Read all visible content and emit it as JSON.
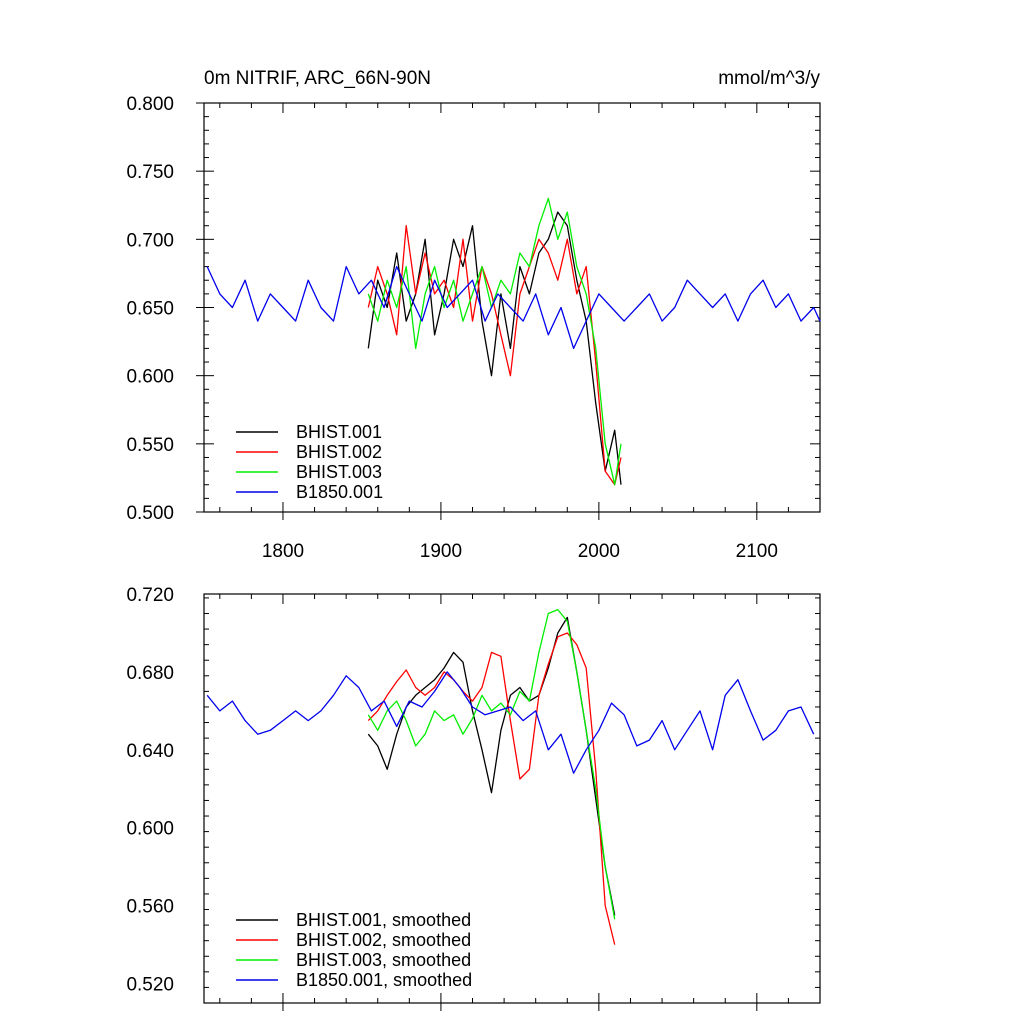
{
  "chart_data": [
    {
      "type": "line",
      "title": "0m NITRIF, ARC_66N-90N",
      "units": "mmol/m^3/y",
      "xlim": [
        1750,
        2140
      ],
      "ylim": [
        0.5,
        0.8
      ],
      "x_ticks": [
        1800,
        1900,
        2000,
        2100
      ],
      "x_tick_labels": [
        "1800",
        "1900",
        "2000",
        "2100"
      ],
      "y_ticks": [
        0.5,
        0.55,
        0.6,
        0.65,
        0.7,
        0.75,
        0.8
      ],
      "y_tick_labels": [
        "0.500",
        "0.550",
        "0.600",
        "0.650",
        "0.700",
        "0.750",
        "0.800"
      ],
      "legend_position": "bottom-left",
      "series": [
        {
          "name": "BHIST.001",
          "color": "#000000",
          "x": [
            1854,
            1860,
            1866,
            1872,
            1878,
            1884,
            1890,
            1896,
            1902,
            1908,
            1914,
            1920,
            1926,
            1932,
            1938,
            1944,
            1950,
            1956,
            1962,
            1968,
            1974,
            1980,
            1986,
            1992,
            1998,
            2004,
            2010,
            2014
          ],
          "y": [
            0.62,
            0.67,
            0.65,
            0.69,
            0.64,
            0.66,
            0.7,
            0.63,
            0.66,
            0.7,
            0.68,
            0.71,
            0.64,
            0.6,
            0.66,
            0.62,
            0.68,
            0.66,
            0.69,
            0.7,
            0.72,
            0.71,
            0.67,
            0.64,
            0.58,
            0.53,
            0.56,
            0.52
          ]
        },
        {
          "name": "BHIST.002",
          "color": "#ff0000",
          "x": [
            1854,
            1860,
            1866,
            1872,
            1878,
            1884,
            1890,
            1896,
            1902,
            1908,
            1914,
            1920,
            1926,
            1932,
            1938,
            1944,
            1950,
            1956,
            1962,
            1968,
            1974,
            1980,
            1986,
            1992,
            1998,
            2004,
            2010,
            2014
          ],
          "y": [
            0.65,
            0.68,
            0.66,
            0.63,
            0.71,
            0.66,
            0.69,
            0.66,
            0.67,
            0.65,
            0.7,
            0.64,
            0.68,
            0.66,
            0.63,
            0.6,
            0.66,
            0.68,
            0.7,
            0.69,
            0.67,
            0.7,
            0.66,
            0.68,
            0.61,
            0.53,
            0.52,
            0.54
          ]
        },
        {
          "name": "BHIST.003",
          "color": "#00ee00",
          "x": [
            1854,
            1860,
            1866,
            1872,
            1878,
            1884,
            1890,
            1896,
            1902,
            1908,
            1914,
            1920,
            1926,
            1932,
            1938,
            1944,
            1950,
            1956,
            1962,
            1968,
            1974,
            1980,
            1986,
            1992,
            1998,
            2004,
            2010,
            2014
          ],
          "y": [
            0.66,
            0.64,
            0.67,
            0.65,
            0.68,
            0.62,
            0.66,
            0.68,
            0.65,
            0.67,
            0.64,
            0.66,
            0.68,
            0.65,
            0.67,
            0.66,
            0.69,
            0.68,
            0.71,
            0.73,
            0.7,
            0.72,
            0.68,
            0.66,
            0.62,
            0.55,
            0.52,
            0.55
          ]
        },
        {
          "name": "B1850.001",
          "color": "#0000ee",
          "x": [
            1752,
            1760,
            1768,
            1776,
            1784,
            1792,
            1800,
            1808,
            1816,
            1824,
            1832,
            1840,
            1848,
            1856,
            1864,
            1872,
            1880,
            1888,
            1896,
            1904,
            1912,
            1920,
            1928,
            1936,
            1944,
            1952,
            1960,
            1968,
            1976,
            1984,
            1992,
            2000,
            2008,
            2016,
            2024,
            2032,
            2040,
            2048,
            2056,
            2064,
            2072,
            2080,
            2088,
            2096,
            2104,
            2112,
            2120,
            2128,
            2136,
            2140
          ],
          "y": [
            0.68,
            0.66,
            0.65,
            0.67,
            0.64,
            0.66,
            0.65,
            0.64,
            0.67,
            0.65,
            0.64,
            0.68,
            0.66,
            0.67,
            0.65,
            0.68,
            0.66,
            0.64,
            0.67,
            0.65,
            0.66,
            0.67,
            0.64,
            0.66,
            0.65,
            0.64,
            0.66,
            0.63,
            0.65,
            0.62,
            0.64,
            0.66,
            0.65,
            0.64,
            0.65,
            0.66,
            0.64,
            0.65,
            0.67,
            0.66,
            0.65,
            0.66,
            0.64,
            0.66,
            0.67,
            0.65,
            0.66,
            0.64,
            0.65,
            0.64
          ]
        }
      ]
    },
    {
      "type": "line",
      "title": "",
      "xlim": [
        1750,
        2140
      ],
      "ylim": [
        0.51,
        0.72
      ],
      "x_ticks": [
        1800,
        1900,
        2000,
        2100
      ],
      "y_ticks": [
        0.52,
        0.56,
        0.6,
        0.64,
        0.68,
        0.72
      ],
      "y_tick_labels": [
        "0.520",
        "0.560",
        "0.600",
        "0.640",
        "0.680",
        "0.720"
      ],
      "legend_position": "bottom-left",
      "series": [
        {
          "name": "BHIST.001, smoothed",
          "color": "#000000",
          "x": [
            1854,
            1860,
            1866,
            1872,
            1878,
            1884,
            1890,
            1896,
            1902,
            1908,
            1914,
            1920,
            1926,
            1932,
            1938,
            1944,
            1950,
            1956,
            1962,
            1968,
            1974,
            1980,
            1986,
            1992,
            1998,
            2004,
            2010
          ],
          "y": [
            0.648,
            0.642,
            0.63,
            0.648,
            0.662,
            0.668,
            0.672,
            0.676,
            0.682,
            0.69,
            0.685,
            0.66,
            0.64,
            0.618,
            0.65,
            0.668,
            0.672,
            0.665,
            0.668,
            0.682,
            0.7,
            0.708,
            0.68,
            0.65,
            0.615,
            0.58,
            0.555
          ]
        },
        {
          "name": "BHIST.002, smoothed",
          "color": "#ff0000",
          "x": [
            1854,
            1860,
            1866,
            1872,
            1878,
            1884,
            1890,
            1896,
            1902,
            1908,
            1914,
            1920,
            1926,
            1932,
            1938,
            1944,
            1950,
            1956,
            1962,
            1968,
            1974,
            1980,
            1986,
            1992,
            1998,
            2004,
            2010
          ],
          "y": [
            0.655,
            0.66,
            0.668,
            0.675,
            0.681,
            0.672,
            0.668,
            0.672,
            0.68,
            0.676,
            0.67,
            0.665,
            0.672,
            0.69,
            0.688,
            0.655,
            0.625,
            0.63,
            0.668,
            0.684,
            0.698,
            0.7,
            0.694,
            0.682,
            0.63,
            0.56,
            0.54
          ]
        },
        {
          "name": "BHIST.003, smoothed",
          "color": "#00ee00",
          "x": [
            1854,
            1860,
            1866,
            1872,
            1878,
            1884,
            1890,
            1896,
            1902,
            1908,
            1914,
            1920,
            1926,
            1932,
            1938,
            1944,
            1950,
            1956,
            1962,
            1968,
            1974,
            1980,
            1986,
            1992,
            1998,
            2004,
            2010
          ],
          "y": [
            0.658,
            0.65,
            0.66,
            0.665,
            0.655,
            0.642,
            0.648,
            0.66,
            0.655,
            0.658,
            0.648,
            0.656,
            0.668,
            0.66,
            0.664,
            0.658,
            0.67,
            0.665,
            0.69,
            0.71,
            0.712,
            0.706,
            0.68,
            0.65,
            0.62,
            0.58,
            0.553
          ]
        },
        {
          "name": "B1850.001, smoothed",
          "color": "#0000ee",
          "x": [
            1752,
            1760,
            1768,
            1776,
            1784,
            1792,
            1800,
            1808,
            1816,
            1824,
            1832,
            1840,
            1848,
            1856,
            1864,
            1872,
            1880,
            1888,
            1896,
            1904,
            1912,
            1920,
            1928,
            1936,
            1944,
            1952,
            1960,
            1968,
            1976,
            1984,
            1992,
            2000,
            2008,
            2016,
            2024,
            2032,
            2040,
            2048,
            2056,
            2064,
            2072,
            2080,
            2088,
            2096,
            2104,
            2112,
            2120,
            2128,
            2136
          ],
          "y": [
            0.668,
            0.66,
            0.665,
            0.655,
            0.648,
            0.65,
            0.655,
            0.66,
            0.655,
            0.66,
            0.668,
            0.678,
            0.672,
            0.66,
            0.665,
            0.652,
            0.665,
            0.662,
            0.67,
            0.68,
            0.672,
            0.662,
            0.658,
            0.66,
            0.662,
            0.655,
            0.66,
            0.64,
            0.648,
            0.628,
            0.64,
            0.65,
            0.664,
            0.658,
            0.642,
            0.645,
            0.655,
            0.64,
            0.65,
            0.66,
            0.64,
            0.668,
            0.676,
            0.66,
            0.645,
            0.65,
            0.66,
            0.662,
            0.648
          ]
        }
      ]
    }
  ]
}
